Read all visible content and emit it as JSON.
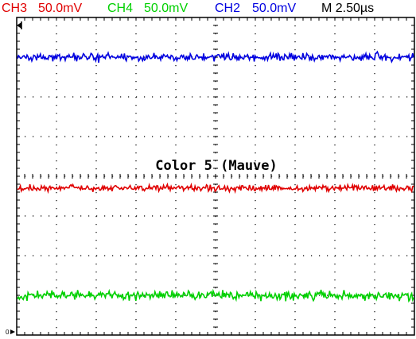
{
  "status_bar": {
    "ch3": {
      "name": "CH3",
      "scale": "50.0mV",
      "color": "#e00000"
    },
    "ch4": {
      "name": "CH4",
      "scale": "50.0mV",
      "color": "#00d000"
    },
    "ch2": {
      "name": "CH2",
      "scale": "50.0mV",
      "color": "#0000e0"
    },
    "timebase": {
      "label": "M 2.50µs",
      "color": "#000000"
    }
  },
  "graticule": {
    "divisions_x": 10,
    "divisions_y": 8,
    "grid_color": "#000000"
  },
  "overlay": {
    "caption": "Color 5 (Mauve)"
  },
  "markers": {
    "ground_marker": "0"
  },
  "traces": [
    {
      "name": "CH2",
      "color": "#0000e0",
      "level_div": 3.0,
      "noise_div": 0.06,
      "seed": 11
    },
    {
      "name": "CH3",
      "color": "#e00000",
      "level_div": -0.3,
      "noise_div": 0.05,
      "seed": 23
    },
    {
      "name": "CH4",
      "color": "#00d000",
      "level_div": -3.0,
      "noise_div": 0.07,
      "seed": 37
    }
  ]
}
